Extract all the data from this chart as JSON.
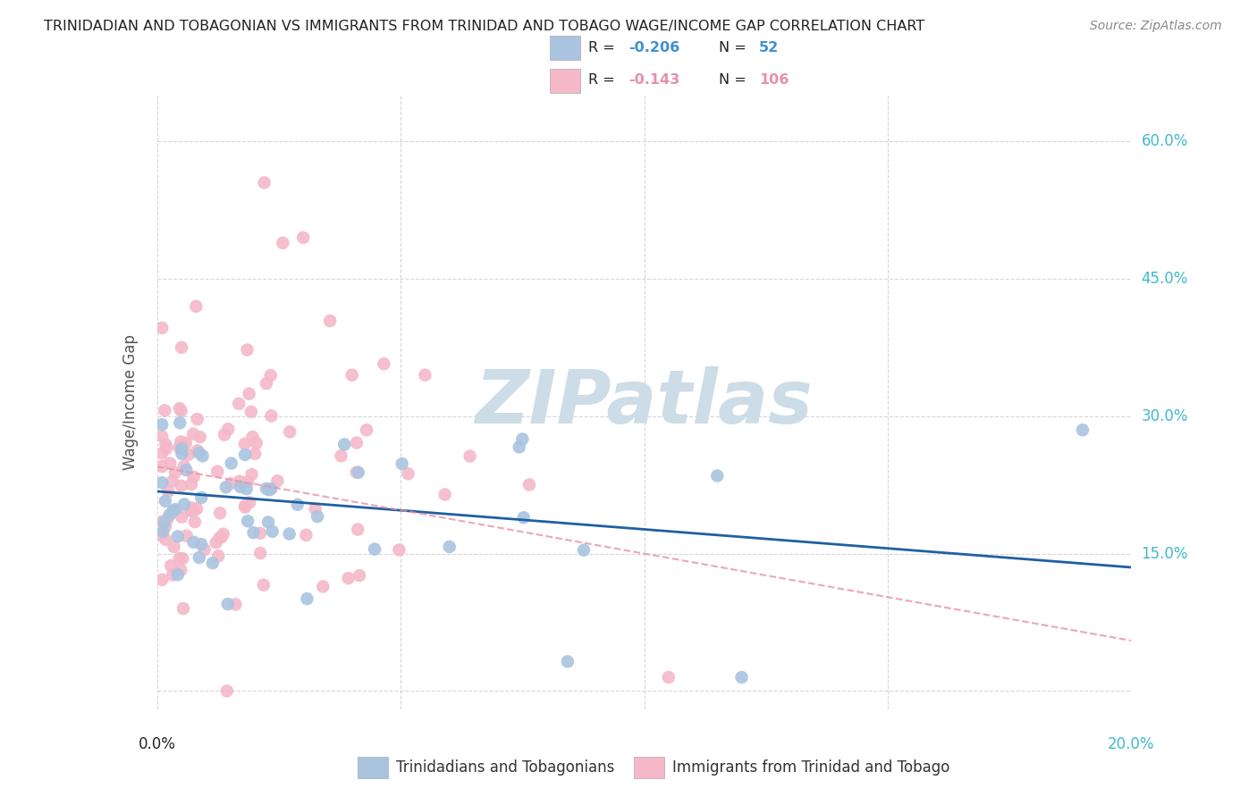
{
  "title": "TRINIDADIAN AND TOBAGONIAN VS IMMIGRANTS FROM TRINIDAD AND TOBAGO WAGE/INCOME GAP CORRELATION CHART",
  "source": "Source: ZipAtlas.com",
  "ylabel": "Wage/Income Gap",
  "xlim": [
    0.0,
    0.2
  ],
  "ylim": [
    -0.02,
    0.65
  ],
  "ytick_vals": [
    0.0,
    0.15,
    0.3,
    0.45,
    0.6
  ],
  "ytick_labels": [
    "",
    "15.0%",
    "30.0%",
    "45.0%",
    "60.0%"
  ],
  "xtick_vals": [
    0.0,
    0.05,
    0.1,
    0.15,
    0.2
  ],
  "legend_labels": [
    "Trinidadians and Tobagonians",
    "Immigrants from Trinidad and Tobago"
  ],
  "blue_R": "-0.206",
  "blue_N": "52",
  "pink_R": "-0.143",
  "pink_N": "106",
  "blue_color": "#aac4e0",
  "pink_color": "#f4b8c8",
  "blue_line_color": "#2060a0",
  "pink_line_color": "#e890a8",
  "label_color_blue": "#4090d0",
  "label_color_pink": "#e890a8",
  "right_axis_color": "#40b8d0",
  "watermark_color": "#ccdde8",
  "grid_color": "#cccccc",
  "title_color": "#222222",
  "source_color": "#888888",
  "bottom_label_left_color": "#222222",
  "bottom_label_right_color": "#40b8d0"
}
